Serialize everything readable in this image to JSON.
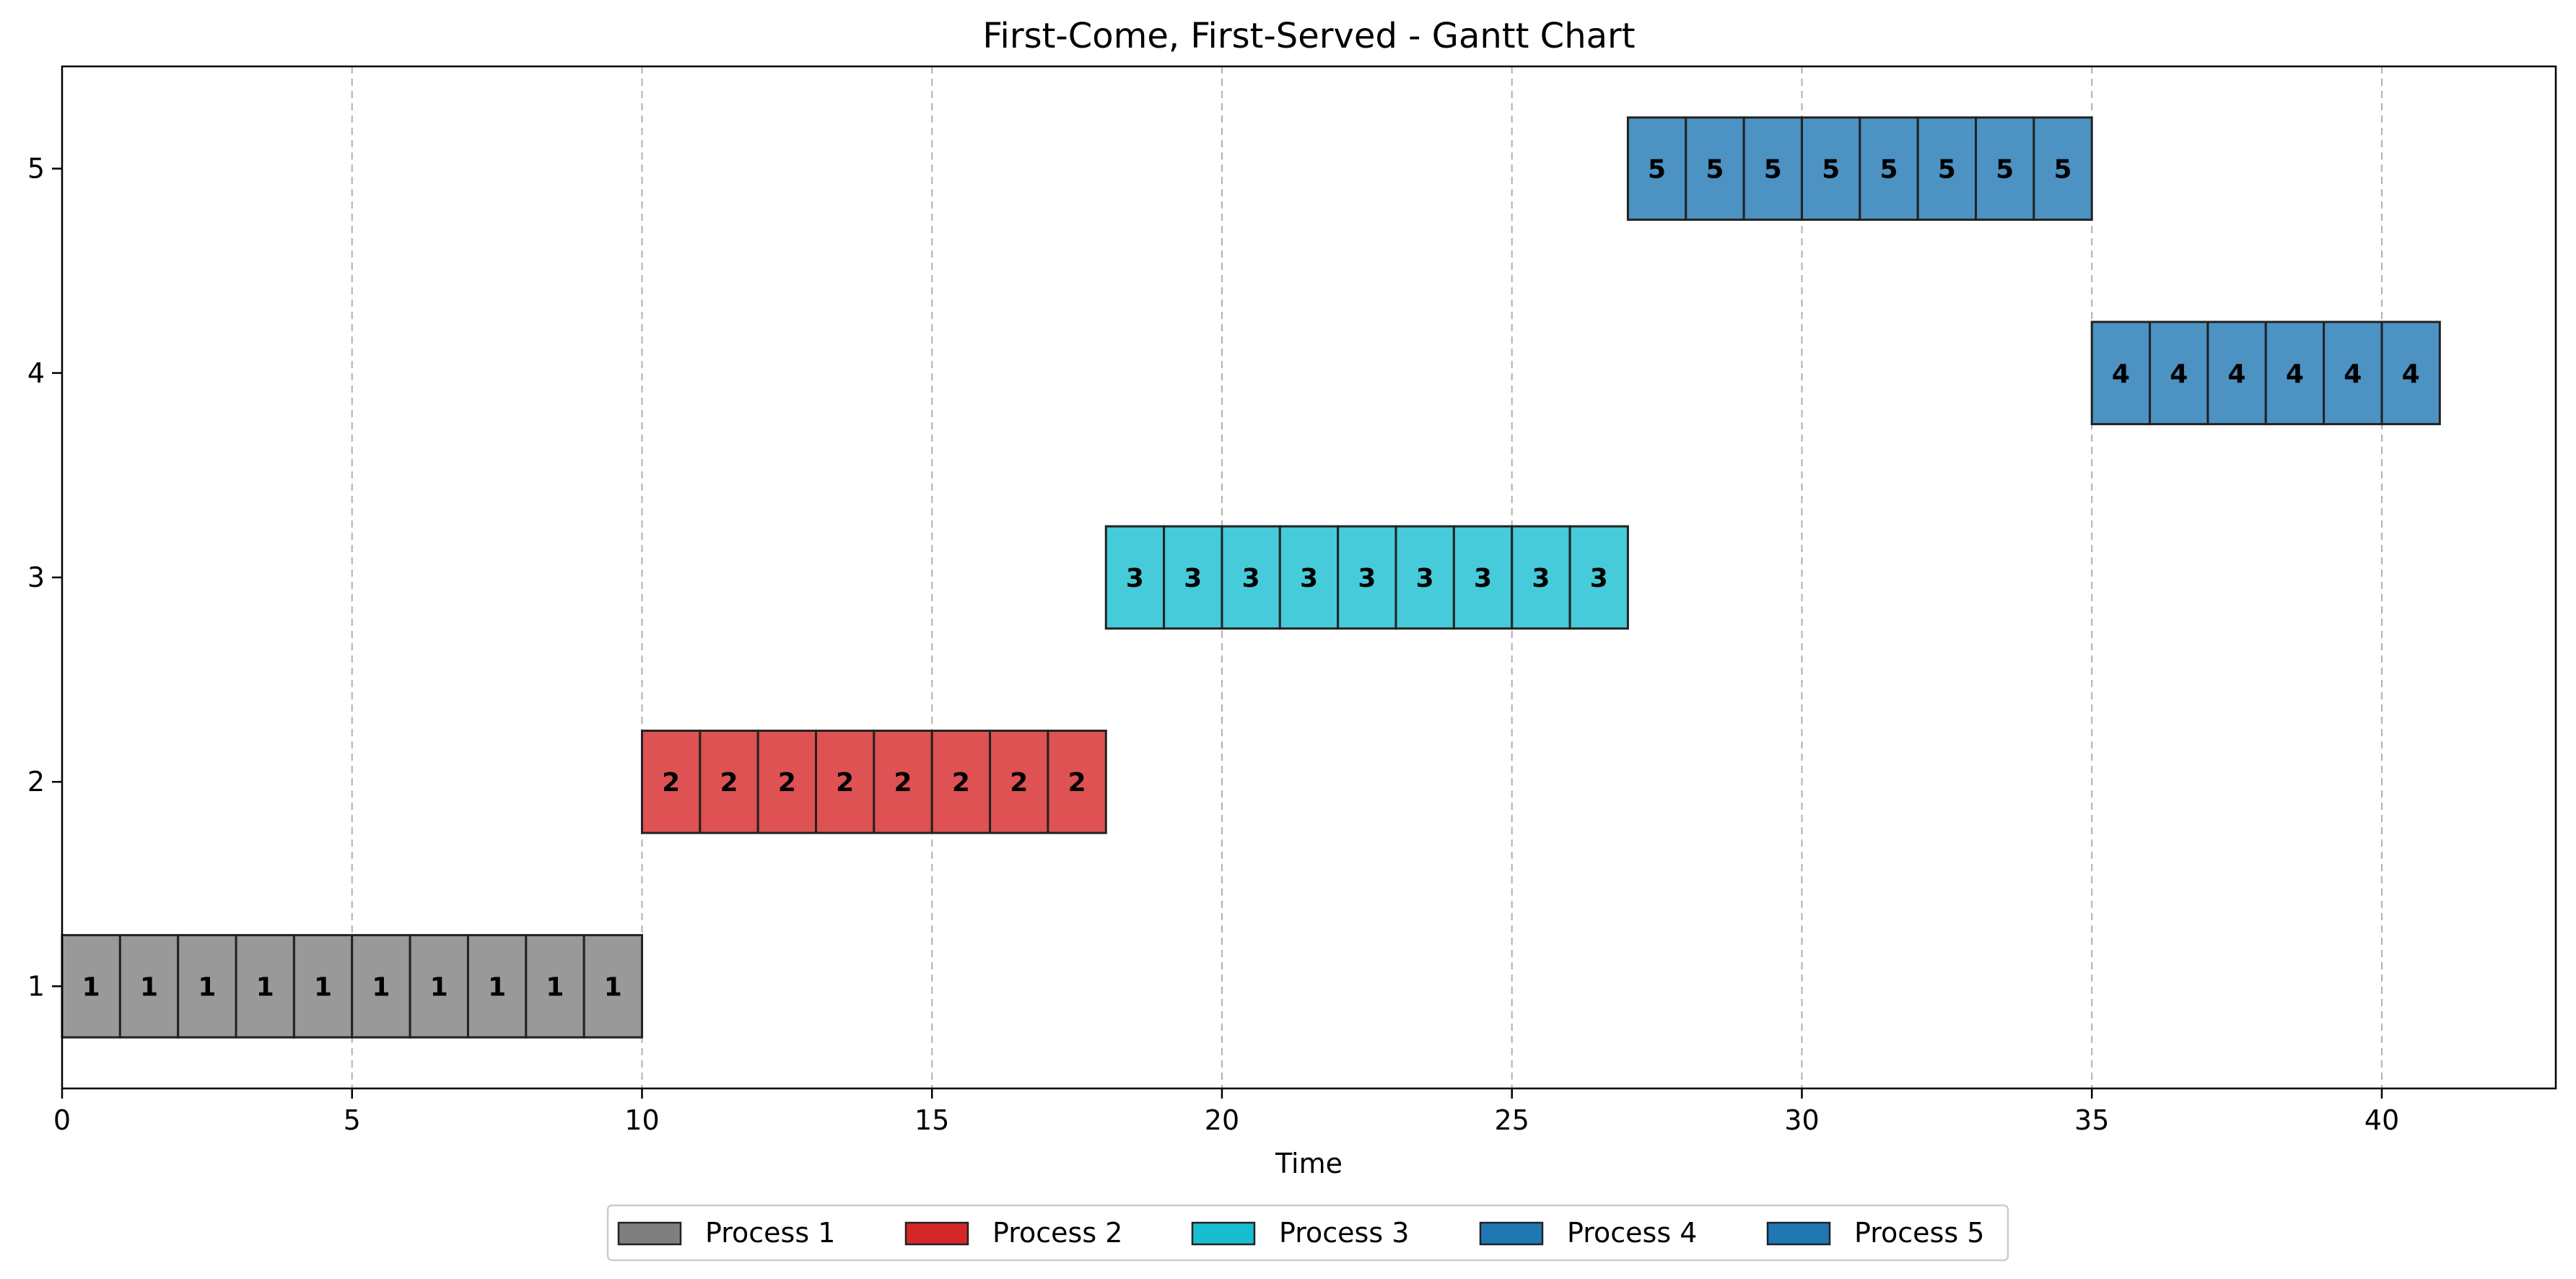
{
  "chart_data": {
    "type": "gantt",
    "title": "First-Come, First-Served - Gantt Chart",
    "xlabel": "Time",
    "ylabel": "",
    "xlim": [
      0,
      43
    ],
    "ylim": [
      0.5,
      5.5
    ],
    "xticks": [
      0,
      5,
      10,
      15,
      20,
      25,
      30,
      35,
      40
    ],
    "yticks": [
      1,
      2,
      3,
      4,
      5
    ],
    "grid": "vertical dashed at x ticks",
    "legend_placement": "bottom-center",
    "series": [
      {
        "name": "Process 1",
        "row": 1,
        "label": "1",
        "start": 0,
        "end": 10,
        "color": "#7f7f7f"
      },
      {
        "name": "Process 2",
        "row": 2,
        "label": "2",
        "start": 10,
        "end": 18,
        "color": "#d62728"
      },
      {
        "name": "Process 3",
        "row": 3,
        "label": "3",
        "start": 18,
        "end": 27,
        "color": "#17becf"
      },
      {
        "name": "Process 4",
        "row": 4,
        "label": "4",
        "start": 35,
        "end": 41,
        "color": "#1f77b4"
      },
      {
        "name": "Process 5",
        "row": 5,
        "label": "5",
        "start": 27,
        "end": 35,
        "color": "#1f77b4"
      }
    ]
  }
}
